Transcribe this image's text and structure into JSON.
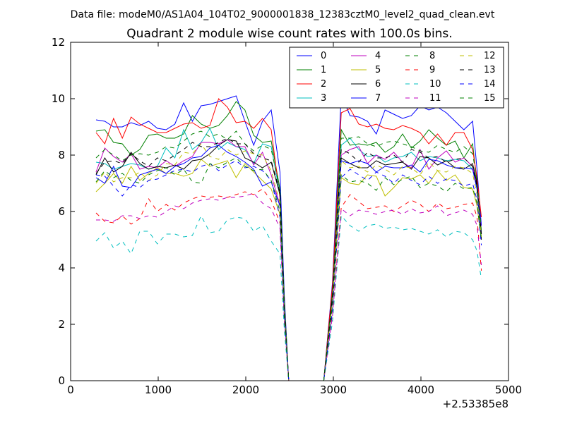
{
  "header": {
    "data_file": "Data file: modeM0/AS1A04_104T02_9000001838_12383cztM0_level2_quad_clean.evt"
  },
  "chart_data": {
    "type": "line",
    "title": "Quadrant 2 module wise count rates with 100.0s bins.",
    "xlabel": "",
    "ylabel": "",
    "x_offset_label": "+2.53385e8",
    "xlim": [
      0,
      5000
    ],
    "ylim": [
      0,
      12
    ],
    "x_ticks": [
      "0",
      "1000",
      "2000",
      "3000",
      "4000",
      "5000"
    ],
    "y_ticks": [
      "0",
      "2",
      "4",
      "6",
      "8",
      "10",
      "12"
    ],
    "grid": false,
    "legend_position": "top-right",
    "legend_columns": 4,
    "x": [
      290,
      390,
      490,
      590,
      690,
      790,
      890,
      990,
      1090,
      1190,
      1290,
      1390,
      1490,
      1590,
      1690,
      1790,
      1890,
      1990,
      2090,
      2190,
      2290,
      2390,
      2440,
      2490,
      2890,
      2990,
      3090,
      3190,
      3290,
      3390,
      3490,
      3590,
      3690,
      3790,
      3890,
      3990,
      4090,
      4190,
      4290,
      4390,
      4490,
      4590,
      4640,
      4690
    ],
    "series": [
      {
        "name": "0",
        "color": "#0000ff",
        "style": "solid",
        "values": [
          9.25,
          9.2,
          9.0,
          9.0,
          9.15,
          9.05,
          9.2,
          8.95,
          8.9,
          9.1,
          9.85,
          9.2,
          9.75,
          9.8,
          9.9,
          10.0,
          10.1,
          9.2,
          8.35,
          9.2,
          9.6,
          7.4,
          3.0,
          0.0,
          0.0,
          3.5,
          10.15,
          9.4,
          9.35,
          9.2,
          8.75,
          9.6,
          9.45,
          9.3,
          9.4,
          9.75,
          9.6,
          9.7,
          9.5,
          9.2,
          8.9,
          9.2,
          7.5,
          5.5
        ]
      },
      {
        "name": "1",
        "color": "#008000",
        "style": "solid",
        "values": [
          8.85,
          8.9,
          8.45,
          8.4,
          8.0,
          8.2,
          8.7,
          8.75,
          8.6,
          8.6,
          8.75,
          9.4,
          9.1,
          8.95,
          9.05,
          9.4,
          9.9,
          9.6,
          8.7,
          8.45,
          8.5,
          6.8,
          2.8,
          0.0,
          0.0,
          3.2,
          8.9,
          8.35,
          8.4,
          8.35,
          8.45,
          8.1,
          8.3,
          8.75,
          8.25,
          8.5,
          8.9,
          8.6,
          8.35,
          8.5,
          7.9,
          8.4,
          7.0,
          5.2
        ]
      },
      {
        "name": "2",
        "color": "#ff0000",
        "style": "solid",
        "values": [
          8.8,
          8.4,
          9.3,
          8.6,
          9.35,
          9.1,
          8.95,
          8.8,
          8.8,
          8.95,
          9.1,
          9.15,
          8.95,
          9.05,
          10.0,
          9.7,
          9.15,
          9.2,
          8.95,
          9.3,
          8.9,
          6.5,
          2.7,
          0.0,
          0.0,
          3.4,
          9.5,
          9.65,
          9.1,
          9.0,
          9.1,
          8.95,
          8.9,
          9.05,
          8.95,
          8.8,
          8.4,
          8.75,
          8.35,
          8.8,
          8.8,
          8.2,
          7.2,
          5.8
        ]
      },
      {
        "name": "3",
        "color": "#00bfbf",
        "style": "solid",
        "values": [
          7.75,
          7.7,
          7.5,
          7.6,
          7.7,
          7.65,
          7.5,
          7.6,
          8.25,
          7.9,
          8.9,
          8.2,
          8.45,
          8.95,
          8.2,
          8.45,
          8.3,
          8.2,
          7.7,
          8.4,
          8.3,
          6.6,
          2.6,
          0.0,
          0.0,
          3.0,
          8.35,
          8.6,
          8.2,
          7.95,
          8.0,
          7.75,
          7.9,
          7.95,
          8.1,
          7.8,
          7.95,
          7.9,
          7.8,
          7.85,
          7.8,
          7.5,
          6.8,
          5.0
        ]
      },
      {
        "name": "4",
        "color": "#bf00bf",
        "style": "solid",
        "values": [
          7.4,
          8.25,
          7.95,
          7.75,
          8.05,
          7.5,
          7.6,
          7.55,
          7.8,
          7.6,
          7.8,
          7.95,
          8.45,
          8.45,
          8.4,
          8.55,
          8.3,
          8.3,
          7.65,
          8.1,
          7.3,
          6.2,
          2.5,
          0.0,
          0.0,
          2.9,
          8.0,
          8.2,
          8.3,
          7.7,
          8.0,
          7.85,
          8.1,
          7.75,
          7.55,
          8.2,
          7.5,
          7.9,
          8.15,
          7.75,
          7.9,
          7.6,
          6.9,
          5.3
        ]
      },
      {
        "name": "5",
        "color": "#bfbf00",
        "style": "solid",
        "values": [
          6.7,
          7.0,
          7.35,
          7.0,
          7.6,
          7.1,
          7.35,
          7.55,
          7.35,
          7.35,
          7.25,
          7.35,
          7.85,
          7.6,
          7.7,
          7.8,
          7.2,
          7.7,
          7.4,
          7.1,
          6.8,
          5.9,
          2.3,
          0.0,
          0.0,
          2.8,
          7.2,
          7.0,
          6.95,
          7.3,
          7.25,
          6.55,
          6.85,
          7.2,
          7.15,
          7.3,
          7.0,
          7.45,
          7.1,
          7.3,
          6.85,
          6.8,
          6.2,
          5.0
        ]
      },
      {
        "name": "6",
        "color": "#000000",
        "style": "solid",
        "values": [
          7.3,
          7.9,
          7.4,
          7.6,
          8.1,
          7.7,
          7.5,
          7.6,
          7.55,
          7.65,
          7.5,
          7.8,
          7.85,
          8.05,
          8.35,
          8.55,
          8.5,
          7.9,
          7.75,
          7.55,
          7.75,
          6.6,
          2.6,
          0.0,
          0.0,
          3.0,
          7.9,
          7.7,
          7.55,
          7.55,
          7.8,
          7.65,
          7.7,
          7.75,
          7.5,
          7.95,
          7.9,
          7.65,
          7.8,
          7.55,
          7.5,
          7.7,
          7.0,
          5.0
        ]
      },
      {
        "name": "7",
        "color": "#0000ff",
        "style": "solid",
        "values": [
          7.2,
          7.0,
          7.6,
          6.9,
          6.85,
          7.3,
          7.4,
          7.5,
          7.35,
          7.6,
          7.7,
          7.9,
          7.95,
          8.25,
          8.35,
          8.1,
          7.95,
          7.75,
          7.5,
          6.9,
          7.05,
          6.2,
          2.5,
          0.0,
          0.0,
          2.9,
          7.8,
          7.7,
          7.8,
          7.7,
          7.4,
          7.6,
          7.55,
          7.55,
          7.65,
          7.4,
          7.85,
          7.8,
          7.65,
          7.55,
          7.55,
          7.5,
          6.8,
          5.2
        ]
      },
      {
        "name": "8",
        "color": "#008000",
        "style": "dashed",
        "values": [
          7.9,
          8.2,
          8.0,
          7.8,
          8.0,
          8.05,
          8.0,
          8.1,
          8.3,
          8.25,
          8.5,
          8.75,
          8.85,
          8.65,
          8.75,
          8.55,
          8.85,
          8.4,
          8.15,
          8.35,
          8.2,
          6.8,
          2.7,
          0.0,
          0.0,
          3.1,
          8.6,
          8.6,
          8.65,
          8.4,
          8.3,
          8.45,
          8.5,
          8.4,
          8.3,
          8.15,
          8.1,
          8.35,
          8.2,
          8.1,
          8.3,
          8.05,
          7.1,
          5.3
        ]
      },
      {
        "name": "9",
        "color": "#ff0000",
        "style": "dashed",
        "values": [
          5.95,
          5.65,
          5.6,
          5.85,
          5.55,
          5.75,
          6.45,
          6.0,
          6.25,
          6.05,
          6.3,
          6.45,
          6.55,
          6.5,
          6.55,
          6.5,
          6.6,
          6.7,
          6.6,
          6.8,
          6.4,
          5.6,
          2.2,
          0.0,
          0.0,
          2.4,
          6.15,
          6.6,
          6.35,
          6.1,
          6.15,
          6.2,
          6.0,
          6.2,
          6.4,
          6.25,
          6.0,
          6.3,
          6.1,
          6.15,
          6.25,
          6.3,
          5.8,
          3.9
        ]
      },
      {
        "name": "10",
        "color": "#00bfbf",
        "style": "dashed",
        "values": [
          4.95,
          5.25,
          4.7,
          4.95,
          4.5,
          5.3,
          5.3,
          4.85,
          5.2,
          5.2,
          5.1,
          5.15,
          5.85,
          5.25,
          5.3,
          5.7,
          5.8,
          5.75,
          5.3,
          5.5,
          4.95,
          4.5,
          1.8,
          0.0,
          0.0,
          2.1,
          5.85,
          5.5,
          5.3,
          5.5,
          5.55,
          5.4,
          5.45,
          5.35,
          5.4,
          5.3,
          5.2,
          5.35,
          5.1,
          5.3,
          5.25,
          5.0,
          4.6,
          3.6
        ]
      },
      {
        "name": "11",
        "color": "#bf00bf",
        "style": "dashed",
        "values": [
          5.7,
          5.7,
          5.65,
          5.85,
          5.85,
          5.75,
          5.85,
          5.8,
          6.0,
          6.2,
          6.1,
          6.3,
          6.4,
          6.45,
          6.4,
          6.5,
          6.5,
          6.55,
          6.65,
          6.3,
          6.1,
          5.4,
          2.1,
          0.0,
          0.0,
          2.3,
          6.1,
          5.85,
          6.05,
          6.0,
          5.9,
          6.0,
          6.05,
          5.9,
          6.1,
          5.95,
          6.0,
          6.2,
          5.85,
          5.95,
          6.05,
          5.9,
          5.5,
          4.1
        ]
      },
      {
        "name": "12",
        "color": "#bfbf00",
        "style": "dashed",
        "values": [
          7.0,
          7.4,
          7.05,
          7.2,
          7.2,
          7.4,
          7.1,
          7.3,
          7.7,
          7.65,
          8.1,
          8.05,
          8.4,
          7.95,
          7.85,
          8.2,
          8.0,
          8.15,
          8.05,
          8.0,
          7.45,
          6.3,
          2.4,
          0.0,
          0.0,
          2.8,
          7.8,
          7.55,
          7.6,
          7.4,
          7.65,
          7.5,
          7.3,
          7.6,
          7.55,
          7.3,
          7.75,
          7.45,
          7.4,
          7.6,
          7.55,
          7.35,
          6.6,
          5.1
        ]
      },
      {
        "name": "13",
        "color": "#000000",
        "style": "dashed",
        "values": [
          7.35,
          7.75,
          7.8,
          7.7,
          8.05,
          7.8,
          7.6,
          7.9,
          7.8,
          8.0,
          8.2,
          8.45,
          8.3,
          8.3,
          8.45,
          8.6,
          8.4,
          8.4,
          8.05,
          7.9,
          7.8,
          6.7,
          2.6,
          0.0,
          0.0,
          3.0,
          8.2,
          8.05,
          7.75,
          8.1,
          7.9,
          7.9,
          8.0,
          7.75,
          8.2,
          8.1,
          7.9,
          7.95,
          7.75,
          7.85,
          7.9,
          7.6,
          6.9,
          5.2
        ]
      },
      {
        "name": "14",
        "color": "#0000ff",
        "style": "dashed",
        "values": [
          7.3,
          7.25,
          6.9,
          6.55,
          6.95,
          6.85,
          7.1,
          7.15,
          7.3,
          7.45,
          7.5,
          7.4,
          7.6,
          7.7,
          7.45,
          7.65,
          7.8,
          7.55,
          7.6,
          7.45,
          7.1,
          5.8,
          2.3,
          0.0,
          0.0,
          2.5,
          7.2,
          7.5,
          7.3,
          7.1,
          7.4,
          7.25,
          7.0,
          7.3,
          7.1,
          6.95,
          7.25,
          7.0,
          7.15,
          7.1,
          6.9,
          7.0,
          6.4,
          4.8
        ]
      },
      {
        "name": "15",
        "color": "#008000",
        "style": "dashed",
        "values": [
          7.05,
          7.45,
          7.2,
          7.35,
          7.1,
          7.0,
          7.3,
          7.45,
          7.55,
          7.3,
          7.5,
          7.05,
          7.0,
          7.7,
          7.55,
          7.75,
          7.9,
          7.6,
          7.45,
          7.5,
          7.1,
          6.0,
          2.3,
          0.0,
          0.0,
          2.7,
          7.3,
          7.05,
          7.1,
          7.0,
          6.75,
          7.2,
          6.95,
          7.15,
          7.25,
          6.85,
          7.0,
          6.9,
          6.7,
          7.0,
          6.8,
          6.85,
          6.3,
          5.0
        ]
      }
    ]
  }
}
